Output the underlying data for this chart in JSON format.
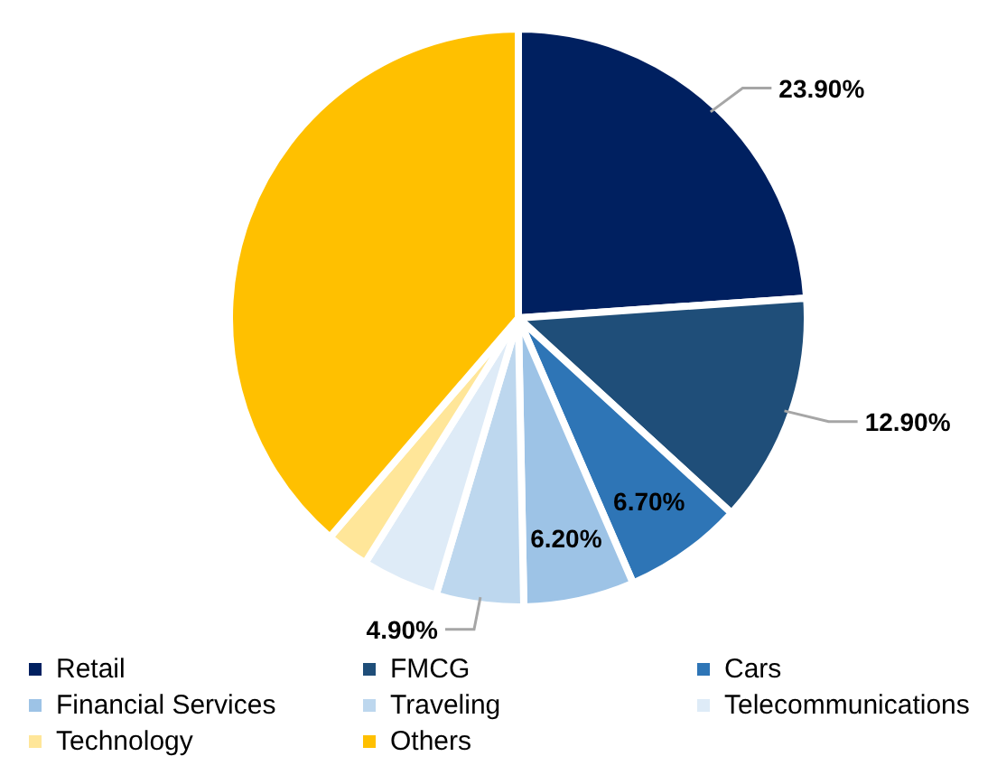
{
  "chart_data": {
    "type": "pie",
    "categories": [
      "Retail",
      "FMCG",
      "Cars",
      "Financial Services",
      "Traveling",
      "Telecommunications",
      "Technology",
      "Others"
    ],
    "values": [
      23.9,
      12.9,
      6.7,
      6.2,
      4.9,
      4.3,
      2.4,
      38.7
    ],
    "colors": [
      "#002060",
      "#1f4e79",
      "#2e75b6",
      "#9dc3e6",
      "#bdd7ee",
      "#deebf7",
      "#ffe699",
      "#ffc000"
    ],
    "value_labels": [
      "23.90%",
      "12.90%",
      "6.70%",
      "6.20%",
      "4.90%",
      null,
      null,
      null
    ],
    "legend": "bottom"
  }
}
